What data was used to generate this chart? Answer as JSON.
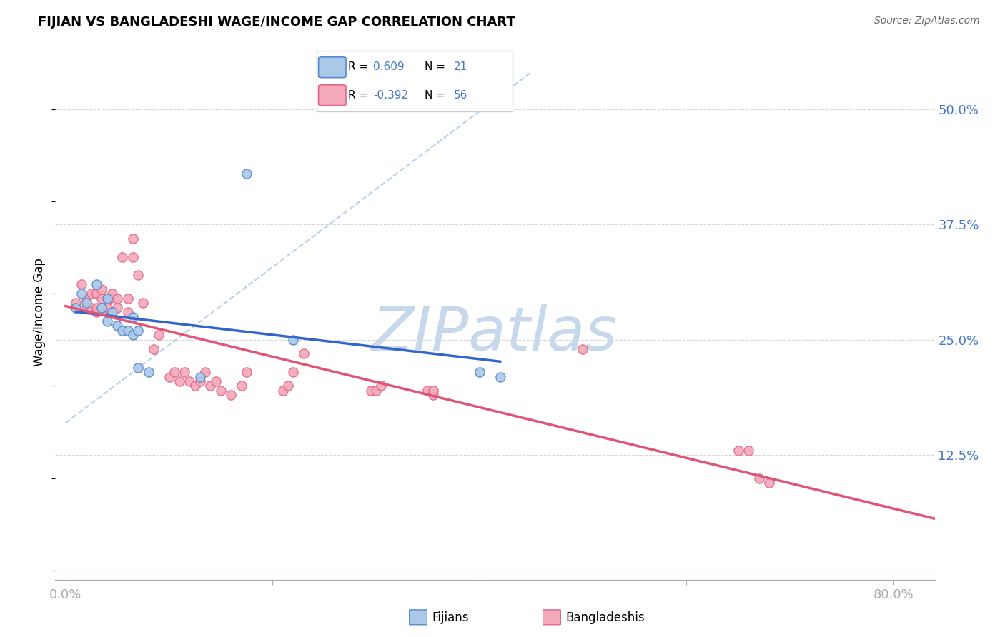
{
  "title": "FIJIAN VS BANGLADESHI WAGE/INCOME GAP CORRELATION CHART",
  "source": "Source: ZipAtlas.com",
  "ylabel": "Wage/Income Gap",
  "y_ticks": [
    0.0,
    0.125,
    0.25,
    0.375,
    0.5
  ],
  "y_tick_labels": [
    "",
    "12.5%",
    "25.0%",
    "37.5%",
    "50.0%"
  ],
  "x_ticks": [
    0.0,
    0.2,
    0.4,
    0.6,
    0.8
  ],
  "x_tick_labels": [
    "0.0%",
    "",
    "",
    "",
    "80.0%"
  ],
  "xlim": [
    -0.01,
    0.84
  ],
  "ylim": [
    -0.01,
    0.57
  ],
  "fijian_R": "0.609",
  "fijian_N": "21",
  "bangladeshi_R": "-0.392",
  "bangladeshi_N": "56",
  "fijian_face": "#aac8e8",
  "bangladeshi_face": "#f4a8b8",
  "fijian_edge": "#5588cc",
  "bangladeshi_edge": "#e06888",
  "fijian_line": "#3366cc",
  "bangladeshi_line": "#e05575",
  "diag_color": "#8ab0d8",
  "watermark_color": "#c8d8ec",
  "grid_color": "#cccccc",
  "tick_color": "#4477cc",
  "fijian_x": [
    0.01,
    0.015,
    0.02,
    0.03,
    0.035,
    0.04,
    0.04,
    0.045,
    0.05,
    0.055,
    0.06,
    0.065,
    0.065,
    0.07,
    0.07,
    0.08,
    0.13,
    0.175,
    0.22,
    0.4,
    0.42
  ],
  "fijian_y": [
    0.285,
    0.3,
    0.29,
    0.31,
    0.285,
    0.295,
    0.27,
    0.28,
    0.265,
    0.26,
    0.26,
    0.255,
    0.275,
    0.26,
    0.22,
    0.215,
    0.21,
    0.43,
    0.25,
    0.215,
    0.21
  ],
  "bangladeshi_x": [
    0.01,
    0.015,
    0.02,
    0.02,
    0.025,
    0.025,
    0.03,
    0.03,
    0.03,
    0.035,
    0.035,
    0.04,
    0.04,
    0.042,
    0.045,
    0.045,
    0.05,
    0.05,
    0.055,
    0.06,
    0.06,
    0.065,
    0.065,
    0.07,
    0.075,
    0.085,
    0.09,
    0.1,
    0.105,
    0.11,
    0.115,
    0.12,
    0.125,
    0.13,
    0.135,
    0.14,
    0.145,
    0.15,
    0.16,
    0.17,
    0.175,
    0.21,
    0.215,
    0.22,
    0.23,
    0.295,
    0.3,
    0.305,
    0.35,
    0.355,
    0.355,
    0.5,
    0.65,
    0.66,
    0.67,
    0.68
  ],
  "bangladeshi_y": [
    0.29,
    0.31,
    0.285,
    0.295,
    0.285,
    0.3,
    0.28,
    0.285,
    0.3,
    0.295,
    0.305,
    0.28,
    0.285,
    0.295,
    0.28,
    0.3,
    0.285,
    0.295,
    0.34,
    0.28,
    0.295,
    0.34,
    0.36,
    0.32,
    0.29,
    0.24,
    0.255,
    0.21,
    0.215,
    0.205,
    0.215,
    0.205,
    0.2,
    0.205,
    0.215,
    0.2,
    0.205,
    0.195,
    0.19,
    0.2,
    0.215,
    0.195,
    0.2,
    0.215,
    0.235,
    0.195,
    0.195,
    0.2,
    0.195,
    0.19,
    0.195,
    0.24,
    0.13,
    0.13,
    0.1,
    0.095
  ]
}
